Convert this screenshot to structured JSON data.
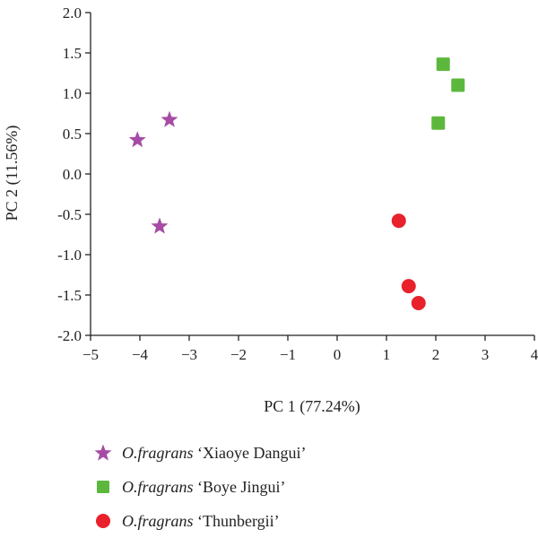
{
  "chart_data": {
    "type": "scatter",
    "xlabel": "PC 1 (77.24%)",
    "ylabel": "PC 2 (11.56%)",
    "xlim": [
      -5,
      4
    ],
    "ylim": [
      -2.0,
      2.0
    ],
    "xticks": [
      "−5",
      "−4",
      "−3",
      "−2",
      "−1",
      "0",
      "1",
      "2",
      "3",
      "4"
    ],
    "yticks": [
      "2.0",
      "1.5",
      "1.0",
      "0.5",
      "0.0",
      "-0.5",
      "-1.0",
      "-1.5",
      "-2.0"
    ],
    "series": [
      {
        "name_italic": "O.fragrans",
        "name_rest": " ‘Xiaoye Dangui’",
        "marker": "star",
        "color": "#a64ca6",
        "points": [
          [
            -4.05,
            0.42
          ],
          [
            -3.4,
            0.67
          ],
          [
            -3.6,
            -0.65
          ]
        ]
      },
      {
        "name_italic": "O.fragrans",
        "name_rest": " ‘Boye Jingui’",
        "marker": "square",
        "color": "#5cb83c",
        "points": [
          [
            2.15,
            1.36
          ],
          [
            2.45,
            1.1
          ],
          [
            2.05,
            0.63
          ]
        ]
      },
      {
        "name_italic": "O.fragrans",
        "name_rest": " ‘Thunbergii’",
        "marker": "circle",
        "color": "#e8212a",
        "points": [
          [
            1.25,
            -0.58
          ],
          [
            1.45,
            -1.39
          ],
          [
            1.65,
            -1.6
          ]
        ]
      }
    ]
  }
}
